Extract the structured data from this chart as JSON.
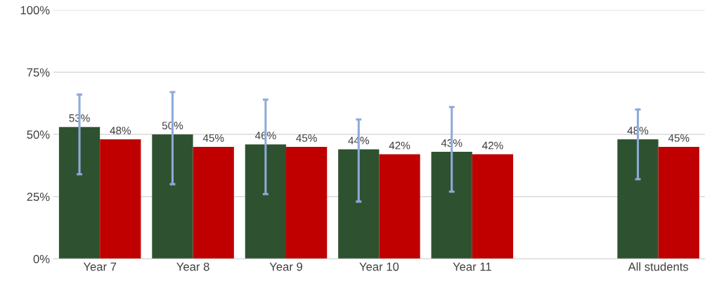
{
  "chart_data": {
    "type": "bar",
    "categories": [
      "Year 7",
      "Year 8",
      "Year 9",
      "Year 10",
      "Year 11",
      null,
      "All students"
    ],
    "series": [
      {
        "color": "#2e5230",
        "values": [
          53,
          50,
          46,
          44,
          43,
          null,
          48
        ],
        "value_labels": [
          "53%",
          "50%",
          "46%",
          "44%",
          "43%",
          null,
          "48%"
        ],
        "errors": [
          [
            34,
            66
          ],
          [
            30,
            67
          ],
          [
            26,
            64
          ],
          [
            23,
            56
          ],
          [
            27,
            61
          ],
          null,
          [
            32,
            60
          ]
        ]
      },
      {
        "color": "#c00000",
        "values": [
          48,
          45,
          45,
          42,
          42,
          null,
          45
        ],
        "value_labels": [
          "48%",
          "45%",
          "45%",
          "42%",
          "42%",
          null,
          "45%"
        ]
      }
    ],
    "ylim": [
      0,
      100
    ],
    "yticks": [
      {
        "value": 0,
        "label": "0%"
      },
      {
        "value": 25,
        "label": "25%"
      },
      {
        "value": 50,
        "label": "50%"
      },
      {
        "value": 75,
        "label": "75%"
      },
      {
        "value": 100,
        "label": "100%"
      }
    ],
    "grid": "y",
    "legend": false
  }
}
